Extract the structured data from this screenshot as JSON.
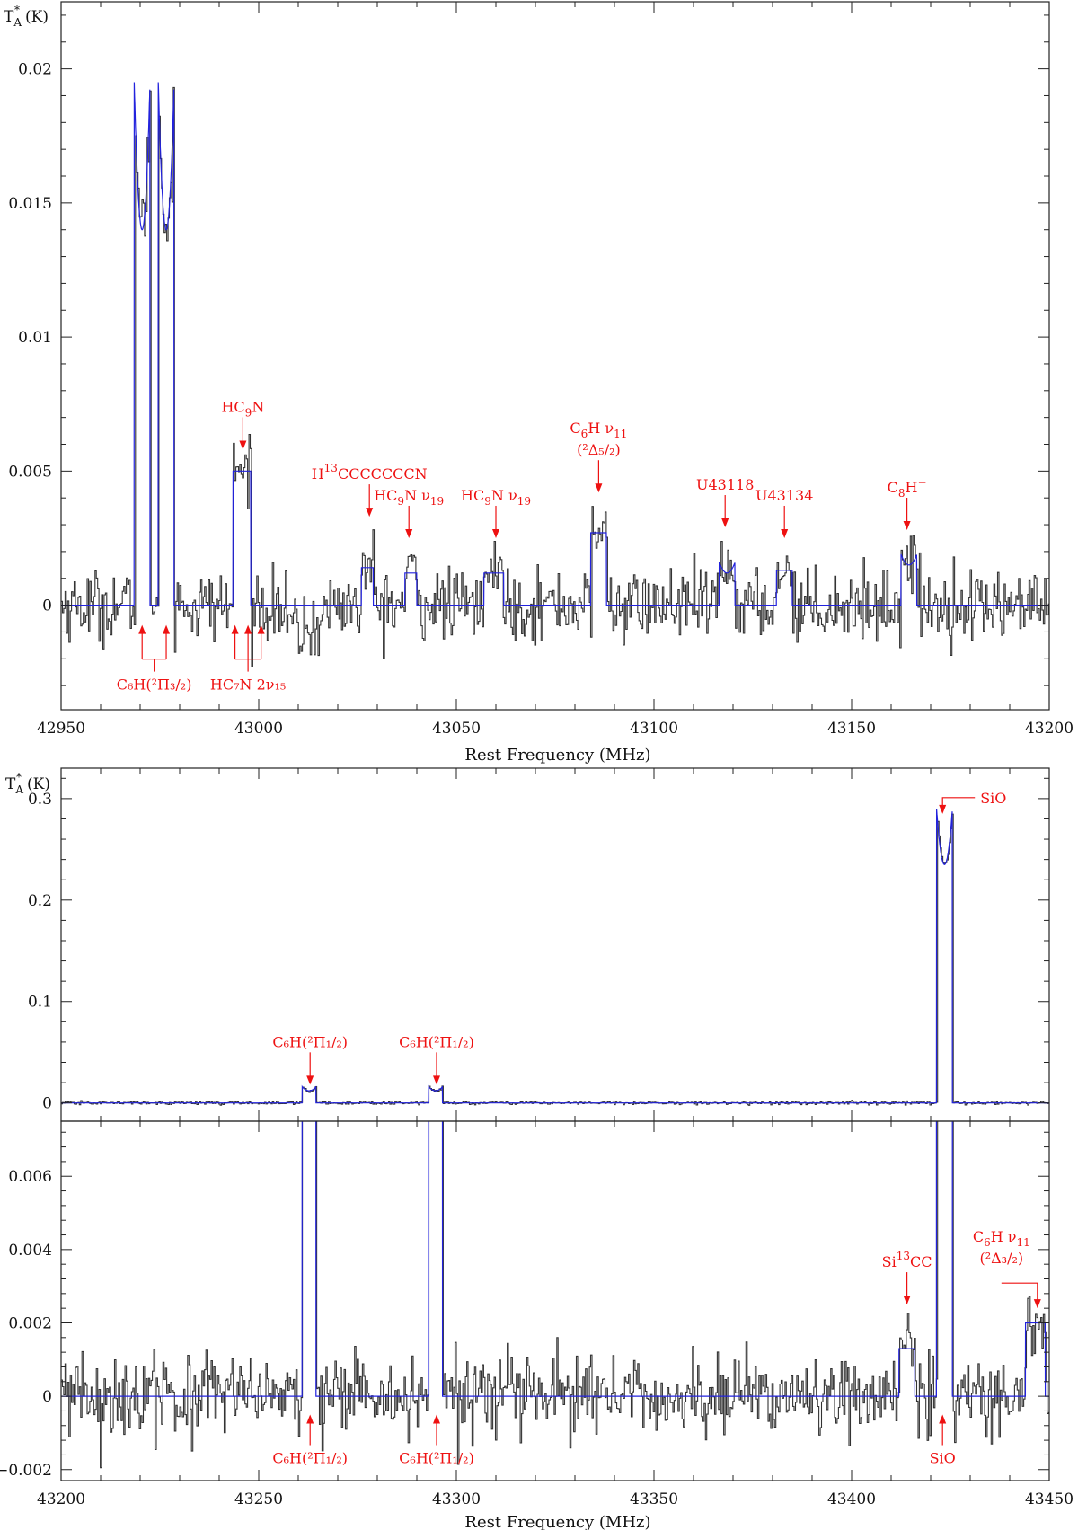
{
  "figure": {
    "xlabel": "Rest Frequency (MHz)",
    "ylabel_top": "T",
    "ylabel_sub": "A",
    "ylabel_sup": "*",
    "ylabel_unit": "(K)",
    "colors": {
      "observed": "#333333",
      "fit": "#2222dd",
      "annotation": "#ee1111"
    }
  },
  "chart_data": [
    {
      "type": "line",
      "panel": "top",
      "xlabel": "Rest Frequency (MHz)",
      "ylabel": "T*A (K)",
      "xlim": [
        42950,
        43200
      ],
      "ylim": [
        -0.0039,
        0.0225
      ],
      "xticks": [
        42950,
        43000,
        43050,
        43100,
        43150,
        43200
      ],
      "xtick_labels": [
        "42950",
        "43000",
        "43050",
        "43100",
        "43150",
        "43200"
      ],
      "yticks": [
        0,
        0.005,
        0.01,
        0.015,
        0.02
      ],
      "ytick_labels": [
        "0",
        "0.005",
        "0.01",
        "0.015",
        "0.02"
      ],
      "noise": 0.00065,
      "series": [
        {
          "role": "fit",
          "components": [
            {
              "x1": 42968.5,
              "x2": 42972.5,
              "h": 0.0195,
              "dip": 0.0055
            },
            {
              "x1": 42974.6,
              "x2": 42978.6,
              "h": 0.0195,
              "dip": 0.0055
            },
            {
              "x1": 42993.5,
              "x2": 42998.0,
              "h": 0.005,
              "dip": 0.0
            },
            {
              "x1": 43026.0,
              "x2": 43029.0,
              "h": 0.0014,
              "dip": 0.0
            },
            {
              "x1": 43037.0,
              "x2": 43040.0,
              "h": 0.0012,
              "dip": 0.0
            },
            {
              "x1": 43057.0,
              "x2": 43062.0,
              "h": 0.0012,
              "dip": 0.0
            },
            {
              "x1": 43084.0,
              "x2": 43088.0,
              "h": 0.0027,
              "dip": 0.0
            },
            {
              "x1": 43116.5,
              "x2": 43120.5,
              "h": 0.0016,
              "dip": 0.0004
            },
            {
              "x1": 43131.0,
              "x2": 43135.0,
              "h": 0.0013,
              "dip": 0.0
            },
            {
              "x1": 43162.5,
              "x2": 43166.5,
              "h": 0.0019,
              "dip": 0.0004
            }
          ]
        }
      ],
      "annotations": [
        {
          "kind": "down",
          "x": 42996,
          "y_tip": 0.0058,
          "text": "HC",
          "sub": "9",
          "after": "N"
        },
        {
          "kind": "down",
          "x": 43028,
          "y_tip": 0.0033,
          "text": "H",
          "sup": "13",
          "after": "CCCCCCCN"
        },
        {
          "kind": "down",
          "x": 43038,
          "y_tip": 0.0025,
          "text": "HC",
          "sub": "9",
          "after": "N  ν",
          "sub2": "19"
        },
        {
          "kind": "down",
          "x": 43060,
          "y_tip": 0.0025,
          "text": "HC",
          "sub": "9",
          "after": "N  ν",
          "sub2": "19"
        },
        {
          "kind": "down",
          "x": 43086,
          "y_tip": 0.0042,
          "text": "C",
          "sub": "6",
          "after": "H  ν",
          "sub2": "11",
          "line2": "(²Δ₅/₂)"
        },
        {
          "kind": "down",
          "x": 43118,
          "y_tip": 0.0029,
          "text": "U43118"
        },
        {
          "kind": "down",
          "x": 43133,
          "y_tip": 0.0025,
          "text": "U43134"
        },
        {
          "kind": "down",
          "x": 43164,
          "y_tip": 0.0028,
          "text": "C",
          "sub": "8",
          "after": "H",
          "sup2": "−"
        }
      ],
      "bracket_annotations": [
        {
          "x": [
            42970.5,
            42976.6
          ],
          "text": "C₆H(²Π₃/₂)"
        },
        {
          "x": [
            42994.0,
            42997.3,
            43000.6
          ],
          "text": "HC₇N  2ν₁₅"
        }
      ]
    },
    {
      "type": "line",
      "panel": "middle",
      "xlim": [
        43200,
        43450
      ],
      "ylim": [
        -0.018,
        0.33
      ],
      "yticks": [
        0,
        0.1,
        0.2,
        0.3
      ],
      "ytick_labels": [
        "0",
        "0.1",
        "0.2",
        "0.3"
      ],
      "noise": 0.0008,
      "series": [
        {
          "role": "fit",
          "components": [
            {
              "x1": 43261.0,
              "x2": 43264.5,
              "h": 0.016,
              "dip": 0.004
            },
            {
              "x1": 43293.0,
              "x2": 43296.5,
              "h": 0.016,
              "dip": 0.004
            },
            {
              "x1": 43421.5,
              "x2": 43425.5,
              "h": 0.29,
              "dip": 0.055
            }
          ]
        }
      ],
      "annotations": [
        {
          "kind": "down",
          "x": 43263,
          "y_tip": 0.018,
          "text": "C₆H(²Π₁/₂)"
        },
        {
          "kind": "down",
          "x": 43295,
          "y_tip": 0.018,
          "text": "C₆H(²Π₁/₂)"
        },
        {
          "kind": "elbow",
          "x": 43423,
          "y_tip": 0.285,
          "text": "SiO"
        }
      ]
    },
    {
      "type": "line",
      "panel": "bottom",
      "xlabel": "Rest Frequency (MHz)",
      "xlim": [
        43200,
        43450
      ],
      "ylim": [
        -0.0023,
        0.0075
      ],
      "xticks": [
        43200,
        43250,
        43300,
        43350,
        43400,
        43450
      ],
      "xtick_labels": [
        "43200",
        "43250",
        "43300",
        "43350",
        "43400",
        "43450"
      ],
      "yticks": [
        -0.002,
        0,
        0.002,
        0.004,
        0.006
      ],
      "ytick_labels": [
        "−0.002",
        "0",
        "0.002",
        "0.004",
        "0.006"
      ],
      "noise": 0.00055,
      "series": [
        {
          "role": "fit",
          "components": [
            {
              "x1": 43261.0,
              "x2": 43264.5,
              "h": 0.016,
              "dip": 0.004
            },
            {
              "x1": 43293.0,
              "x2": 43296.5,
              "h": 0.016,
              "dip": 0.004
            },
            {
              "x1": 43421.5,
              "x2": 43425.5,
              "h": 0.29,
              "dip": 0.055
            },
            {
              "x1": 43412.0,
              "x2": 43416.0,
              "h": 0.0013,
              "dip": 0.0
            },
            {
              "x1": 43444.0,
              "x2": 43449.0,
              "h": 0.002,
              "dip": 0.0
            }
          ]
        }
      ],
      "annotations": [
        {
          "kind": "up",
          "x": 43263,
          "y_tip": -0.0005,
          "text": "C₆H(²Π₁/₂)"
        },
        {
          "kind": "up",
          "x": 43295,
          "y_tip": -0.0005,
          "text": "C₆H(²Π₁/₂)"
        },
        {
          "kind": "up",
          "x": 43423,
          "y_tip": -0.0005,
          "text": "SiO"
        },
        {
          "kind": "down",
          "x": 43414,
          "y_tip": 0.0025,
          "text": "Si",
          "sup": "13",
          "after": "CC"
        },
        {
          "kind": "elbow-right",
          "x": 43447,
          "y_tip": 0.0024,
          "text": "C",
          "sub": "6",
          "after": "H  ν",
          "sub2": "11",
          "line2": "(²Δ₃/₂)"
        }
      ]
    }
  ]
}
